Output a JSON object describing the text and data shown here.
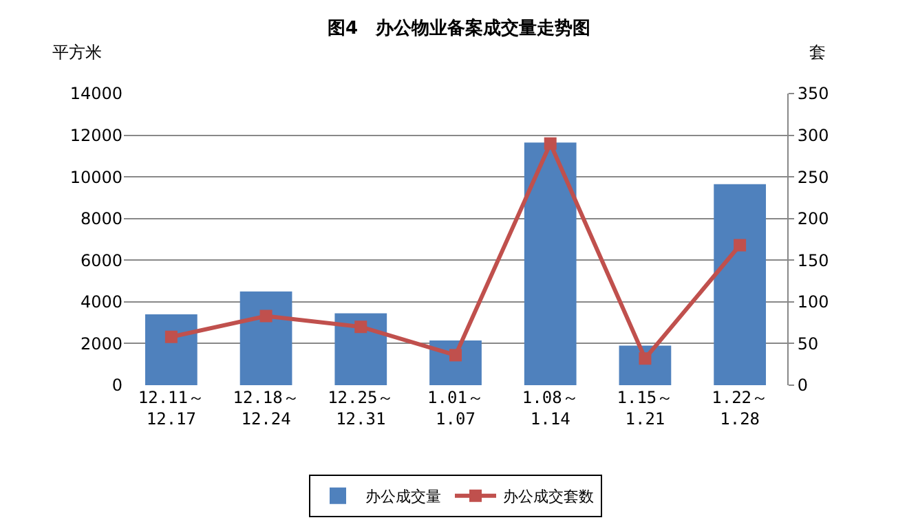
{
  "chart_data": {
    "type": "bar",
    "title": "图4　办公物业备案成交量走势图",
    "ylabel": "平方米",
    "y2label": "套",
    "categories": [
      "12.11～\n12.17",
      "12.18～\n12.24",
      "12.25～\n12.31",
      "1.01～\n1.07",
      "1.08～\n1.14",
      "1.15～\n1.21",
      "1.22～\n1.28"
    ],
    "series": [
      {
        "name": "办公成交量",
        "color": "#4f81bd",
        "values": [
          3400,
          4500,
          3450,
          2150,
          11650,
          1900,
          9650
        ]
      },
      {
        "name": "办公成交套数",
        "type": "line",
        "axis": "y2",
        "color": "#c0504d",
        "marker": "square",
        "values": [
          58,
          83,
          70,
          36,
          290,
          32,
          168
        ]
      }
    ],
    "ylim": [
      0,
      14000
    ],
    "yticks": [
      0,
      2000,
      4000,
      6000,
      8000,
      10000,
      12000,
      14000
    ],
    "y2lim": [
      0,
      350
    ],
    "y2ticks": [
      0,
      50,
      100,
      150,
      200,
      250,
      300,
      350
    ],
    "grid": "y",
    "legend": "bottom"
  }
}
